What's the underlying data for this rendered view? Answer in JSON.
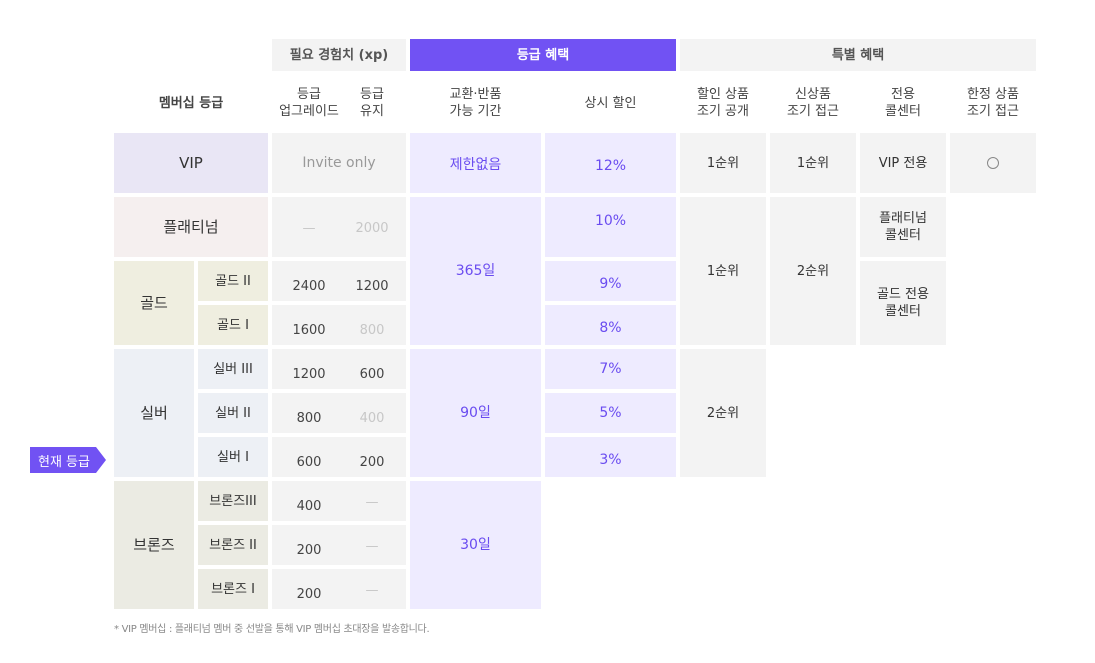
{
  "header_groups": {
    "exp": "필요 경험치 (xp)",
    "benefit": "등급 혜택",
    "special": "특별 혜택"
  },
  "columns": {
    "membership": "멤버십 등급",
    "upgrade_1": "등급",
    "upgrade_2": "업그레이드",
    "keep_1": "등급",
    "keep_2": "유지",
    "exchange_1": "교환·반품",
    "exchange_2": "가능 기간",
    "discount": "상시 할인",
    "sale_preview_1": "할인 상품",
    "sale_preview_2": "조기 공개",
    "new_access_1": "신상품",
    "new_access_2": "조기 접근",
    "center_1": "전용",
    "center_2": "콜센터",
    "limited_1": "한정 상품",
    "limited_2": "조기 접근"
  },
  "tiers": {
    "vip": "VIP",
    "platinum": "플래티넘",
    "gold": "골드",
    "silver": "실버",
    "bronze": "브론즈"
  },
  "subtiers": {
    "gold2": "골드 II",
    "gold1": "골드 I",
    "silver3": "실버 III",
    "silver2": "실버 II",
    "silver1": "실버 I",
    "bronze3": "브론즈III",
    "bronze2": "브론즈 II",
    "bronze1": "브론즈 I"
  },
  "exp": {
    "vip": "Invite only",
    "platinum_up": "—",
    "platinum_keep": "2000",
    "gold2_up": "2400",
    "gold2_keep": "1200",
    "gold1_up": "1600",
    "gold1_keep": "800",
    "silver3_up": "1200",
    "silver3_keep": "600",
    "silver2_up": "800",
    "silver2_keep": "400",
    "silver1_up": "600",
    "silver1_keep": "200",
    "bronze3_up": "400",
    "bronze3_keep": "—",
    "bronze2_up": "200",
    "bronze2_keep": "—",
    "bronze1_up": "200",
    "bronze1_keep": "—"
  },
  "exchange": {
    "vip": "제한없음",
    "plat_gold": "365일",
    "silver": "90일",
    "bronze": "30일"
  },
  "discount": {
    "vip": "12%",
    "platinum": "10%",
    "gold2": "9%",
    "gold1": "8%",
    "silver3": "7%",
    "silver2": "5%",
    "silver1": "3%"
  },
  "sale_preview": {
    "vip": "1순위",
    "plat_gold": "1순위",
    "silver": "2순위"
  },
  "new_access": {
    "vip": "1순위",
    "plat_gold": "2순위"
  },
  "call_center": {
    "vip": "VIP 전용",
    "platinum_1": "플래티넘",
    "platinum_2": "콜센터",
    "gold_1": "골드 전용",
    "gold_2": "콜센터"
  },
  "limited_access": {
    "vip_icon": "circle-icon"
  },
  "current_badge": "현재 등급",
  "footnote": "* VIP 멤버십 : 플래티넘 멤버 중 선발을 통해 VIP 멤버십 초대장을 발송합니다."
}
